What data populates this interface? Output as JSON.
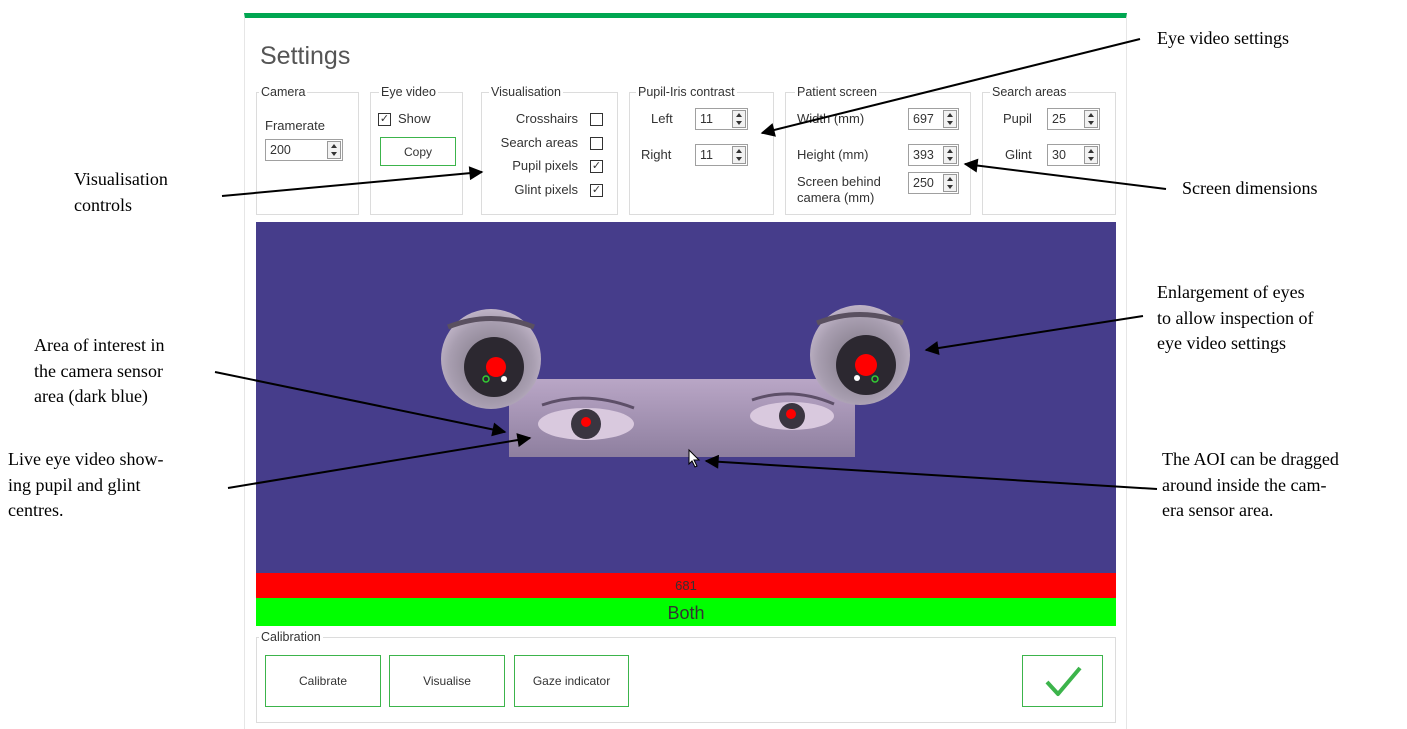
{
  "title": "Settings",
  "camera": {
    "label": "Camera",
    "framerate_label": "Framerate",
    "framerate": 200
  },
  "eye_video": {
    "label": "Eye video",
    "show": {
      "label": "Show",
      "checked": true
    },
    "copy": "Copy"
  },
  "visualisation": {
    "label": "Visualisation",
    "options": [
      {
        "label": "Crosshairs",
        "checked": false
      },
      {
        "label": "Search areas",
        "checked": false
      },
      {
        "label": "Pupil pixels",
        "checked": true
      },
      {
        "label": "Glint pixels",
        "checked": true
      }
    ]
  },
  "pupil_iris_contrast": {
    "label": "Pupil-Iris contrast",
    "rows": [
      {
        "label": "Left",
        "value": 11
      },
      {
        "label": "Right",
        "value": 11
      }
    ]
  },
  "patient_screen": {
    "label": "Patient screen",
    "rows": [
      {
        "label": "Width (mm)",
        "value": 697
      },
      {
        "label": "Height (mm)",
        "value": 393
      },
      {
        "label": "Screen behind camera (mm)",
        "value": 250
      }
    ]
  },
  "search_areas": {
    "label": "Search areas",
    "rows": [
      {
        "label": "Pupil",
        "value": 25
      },
      {
        "label": "Glint",
        "value": 30
      }
    ]
  },
  "status": {
    "value": 681,
    "eye": "Both"
  },
  "calibration": {
    "label": "Calibration",
    "buttons": [
      "Calibrate",
      "Visualise",
      "Gaze indicator"
    ]
  },
  "annotations": [
    {
      "lines": [
        "Eye video settings"
      ]
    },
    {
      "lines": [
        "Visualisation",
        "controls"
      ]
    },
    {
      "lines": [
        "Screen dimensions"
      ]
    },
    {
      "lines": [
        "Enlargement of eyes",
        "to allow inspection of",
        "eye video settings"
      ]
    },
    {
      "lines": [
        "Area of interest in",
        "the camera sensor",
        "area (dark blue)"
      ]
    },
    {
      "lines": [
        "Live eye video show-",
        "ing pupil and glint",
        "centres."
      ]
    },
    {
      "lines": [
        "The AOI can be dragged",
        "around inside the cam-",
        "era sensor area."
      ]
    }
  ]
}
